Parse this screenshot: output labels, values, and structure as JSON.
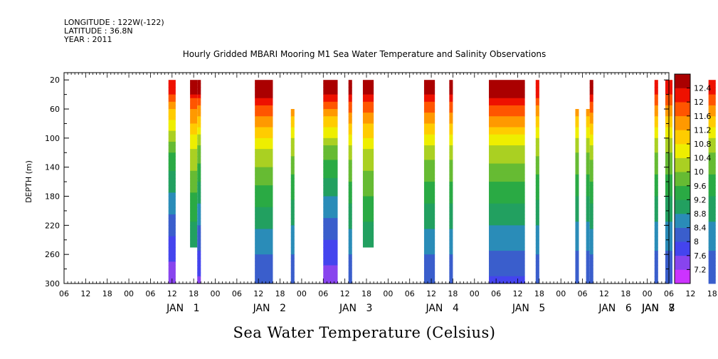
{
  "header": {
    "longitude": "LONGITUDE : 122W(-122)",
    "latitude": "LATITUDE : 36.8N",
    "year": "YEAR : 2011"
  },
  "title": "Hourly Gridded MBARI Mooring M1 Sea Water Temperature and Salinity Observations",
  "bottom_label": "Sea Water Temperature (Celsius)",
  "chart_data": {
    "type": "heatmap",
    "title": "Hourly Gridded MBARI Mooring M1 Sea Water Temperature and Salinity Observations",
    "xlabel": "",
    "ylabel": "DEPTH (m)",
    "x_unit": "hours since JAN 1 00:00",
    "xlim": [
      -18,
      150
    ],
    "ylim": [
      300,
      10
    ],
    "y_ticks": [
      20,
      60,
      100,
      140,
      180,
      220,
      260,
      300
    ],
    "hour_labels": [
      "06",
      "12",
      "18",
      "00",
      "06",
      "12",
      "18",
      "00",
      "06",
      "12",
      "18",
      "00",
      "06",
      "12",
      "18",
      "00",
      "06",
      "12",
      "18",
      "00",
      "06",
      "12",
      "18",
      "00",
      "06",
      "12",
      "18",
      "00",
      "06",
      "12",
      "18",
      "00",
      "06",
      "12",
      "18",
      "00",
      "06"
    ],
    "day_labels": [
      {
        "month": "JAN",
        "day": "1",
        "hour": 18
      },
      {
        "month": "JAN",
        "day": "2",
        "hour": 42
      },
      {
        "month": "JAN",
        "day": "3",
        "hour": 66
      },
      {
        "month": "JAN",
        "day": "4",
        "hour": 90
      },
      {
        "month": "JAN",
        "day": "5",
        "hour": 114
      },
      {
        "month": "JAN",
        "day": "6",
        "hour": 138
      },
      {
        "month": "JAN",
        "day": "7",
        "hour": 162
      },
      {
        "month": "JAN",
        "day": "8",
        "hour": 186
      }
    ],
    "color_scale": {
      "levels": [
        7.2,
        7.6,
        8,
        8.4,
        8.8,
        9.2,
        9.6,
        10,
        10.4,
        10.8,
        11.2,
        11.6,
        12,
        12.4
      ],
      "colors": [
        "#cc33ff",
        "#8844ee",
        "#4444ee",
        "#3a5ecc",
        "#2a8cb8",
        "#22a060",
        "#2aaa44",
        "#66bb33",
        "#aad022",
        "#eeee00",
        "#ffcc00",
        "#ff9900",
        "#ff5500",
        "#ee1100",
        "#aa0000"
      ]
    },
    "data_blocks": [
      {
        "x0": 11,
        "x1": 13,
        "top": 20,
        "bottom": 300,
        "surface": 12.2,
        "bottom_temp": 7.3
      },
      {
        "x0": 17,
        "x1": 19,
        "top": 20,
        "bottom": 250,
        "surface": 12.4,
        "bottom_temp": 8.4
      },
      {
        "x0": 19,
        "x1": 20,
        "top": 20,
        "bottom": 300,
        "surface": 12.4,
        "bottom_temp": 7.5
      },
      {
        "x0": 35,
        "x1": 40,
        "top": 20,
        "bottom": 300,
        "surface": 12.8,
        "bottom_temp": 8.0
      },
      {
        "x0": 45,
        "x1": 46,
        "top": 60,
        "bottom": 300,
        "surface": 12.3,
        "bottom_temp": 8.0
      },
      {
        "x0": 54,
        "x1": 58,
        "top": 20,
        "bottom": 300,
        "surface": 12.6,
        "bottom_temp": 7.3
      },
      {
        "x0": 61,
        "x1": 62,
        "top": 20,
        "bottom": 300,
        "surface": 12.6,
        "bottom_temp": 8.0
      },
      {
        "x0": 65,
        "x1": 68,
        "top": 20,
        "bottom": 250,
        "surface": 12.5,
        "bottom_temp": 8.4
      },
      {
        "x0": 82,
        "x1": 85,
        "top": 20,
        "bottom": 300,
        "surface": 12.6,
        "bottom_temp": 8.0
      },
      {
        "x0": 89,
        "x1": 90,
        "top": 20,
        "bottom": 300,
        "surface": 12.6,
        "bottom_temp": 8.0
      },
      {
        "x0": 100,
        "x1": 110,
        "top": 20,
        "bottom": 300,
        "surface": 12.8,
        "bottom_temp": 7.9
      },
      {
        "x0": 113,
        "x1": 114,
        "top": 20,
        "bottom": 300,
        "surface": 12.3,
        "bottom_temp": 8.0
      },
      {
        "x0": 124,
        "x1": 125,
        "top": 60,
        "bottom": 300,
        "surface": 12.2,
        "bottom_temp": 8.0
      },
      {
        "x0": 127,
        "x1": 128,
        "top": 60,
        "bottom": 300,
        "surface": 12.2,
        "bottom_temp": 8.0
      },
      {
        "x0": 128,
        "x1": 129,
        "top": 20,
        "bottom": 300,
        "surface": 12.6,
        "bottom_temp": 8.0
      },
      {
        "x0": 146,
        "x1": 147,
        "top": 20,
        "bottom": 300,
        "surface": 12.2,
        "bottom_temp": 8.0
      },
      {
        "x0": 149,
        "x1": 151,
        "top": 20,
        "bottom": 300,
        "surface": 12.2,
        "bottom_temp": 8.0
      },
      {
        "x0": 155,
        "x1": 156,
        "top": 20,
        "bottom": 300,
        "surface": 12.2,
        "bottom_temp": 8.0
      },
      {
        "x0": 161,
        "x1": 163,
        "top": 20,
        "bottom": 300,
        "surface": 12.2,
        "bottom_temp": 8.0
      }
    ]
  }
}
